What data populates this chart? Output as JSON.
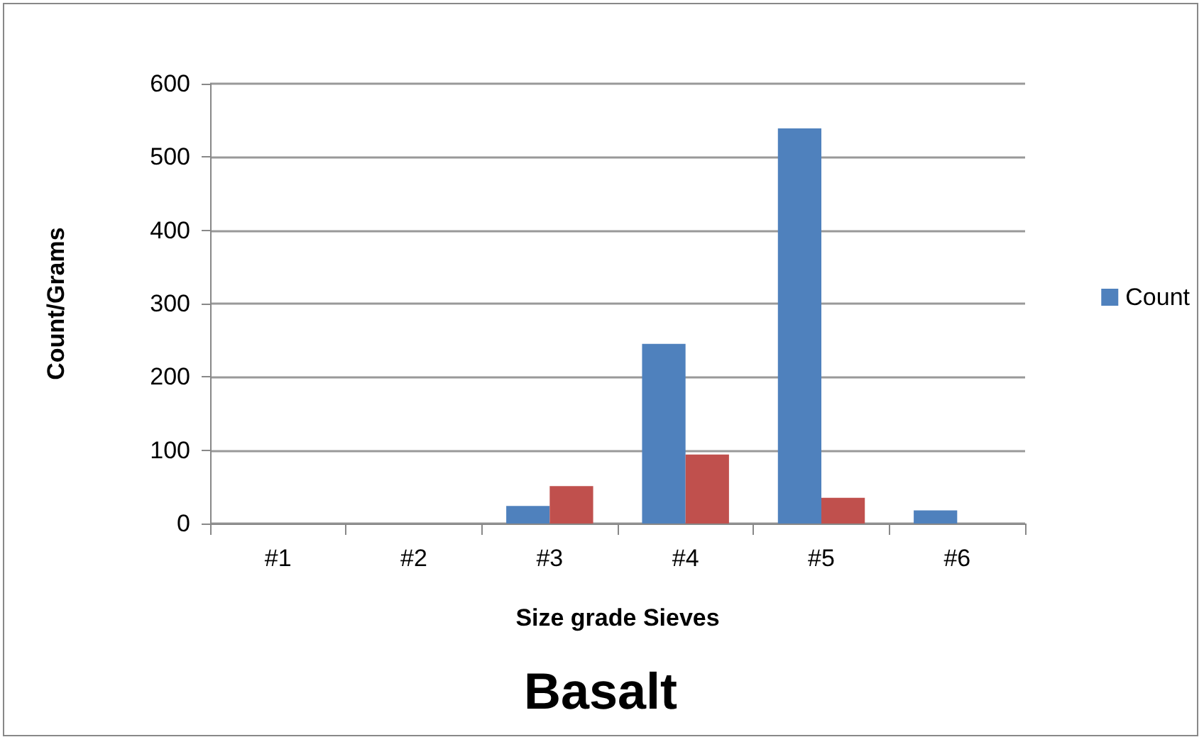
{
  "chart_data": {
    "type": "bar",
    "title": "Basalt",
    "xlabel": "Size grade Sieves",
    "ylabel": "Count/Grams",
    "categories": [
      "#1",
      "#2",
      "#3",
      "#4",
      "#5",
      "#6"
    ],
    "series": [
      {
        "name": "Count",
        "color": "#4f81bd",
        "values": [
          0,
          0,
          24,
          245,
          539,
          18
        ]
      },
      {
        "color": "#c0504d",
        "values": [
          0,
          0,
          51,
          94,
          35,
          0
        ]
      }
    ],
    "ylim": [
      0,
      600
    ],
    "yticks": [
      0,
      100,
      200,
      300,
      400,
      500,
      600
    ],
    "grid": "y",
    "legend": "right"
  }
}
